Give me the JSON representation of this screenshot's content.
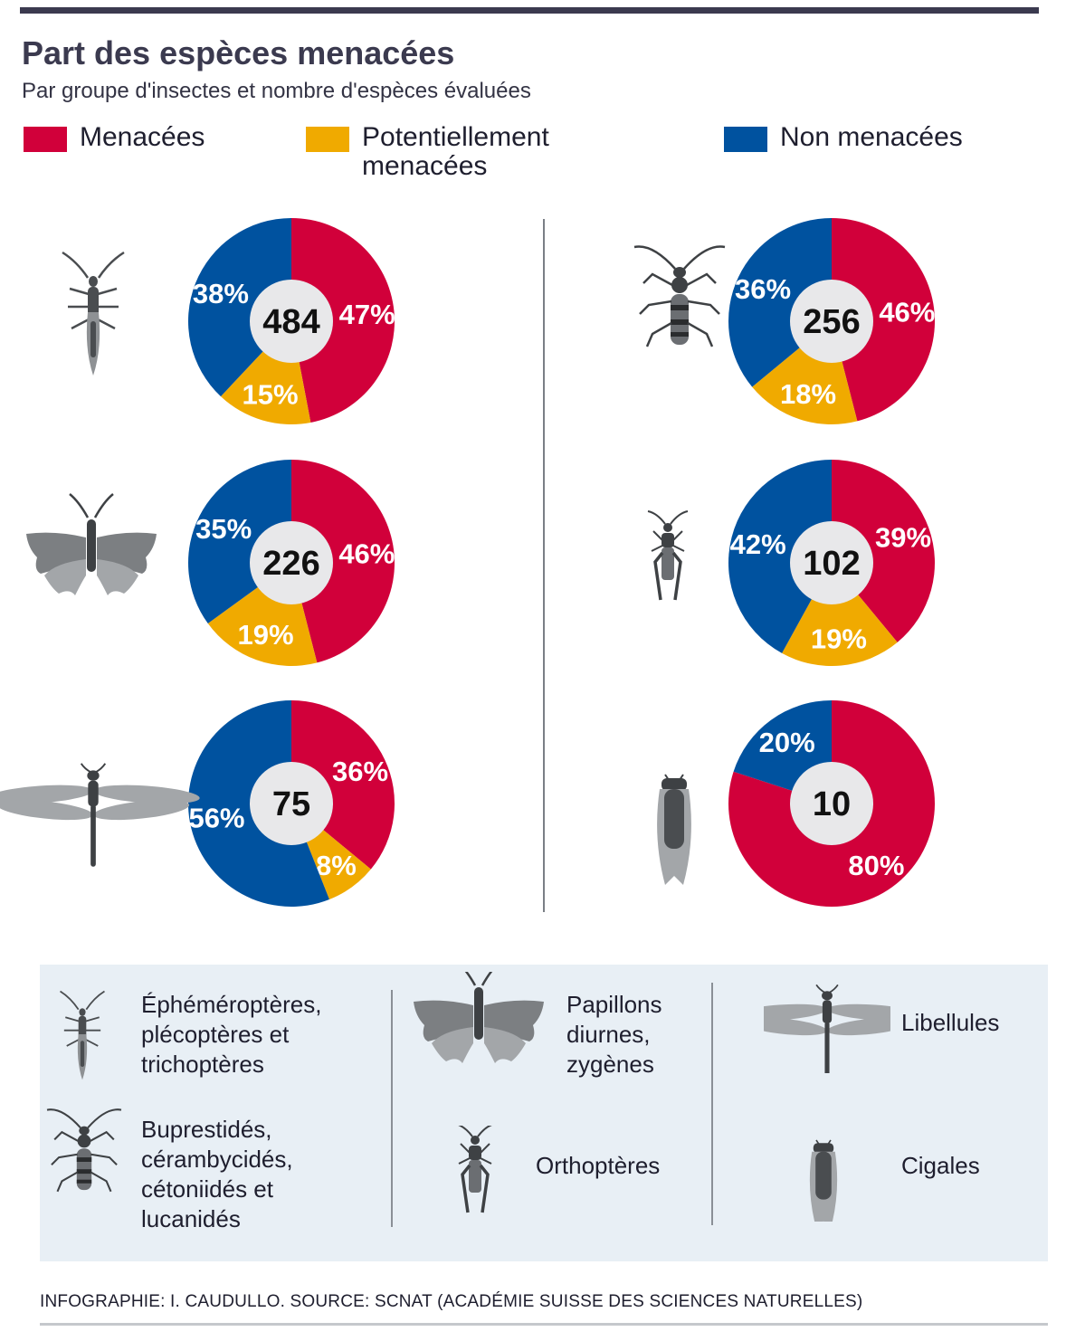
{
  "title": "Part des espèces menacées",
  "subtitle": "Par groupe d'insectes et nombre d'espèces évaluées",
  "legend": [
    {
      "label": "Menacées",
      "color": "#d1003a"
    },
    {
      "label": "Potentiellement menacées",
      "color": "#f0aa00"
    },
    {
      "label": "Non menacées",
      "color": "#00529f"
    }
  ],
  "chart_data": [
    {
      "type": "pie",
      "icon": "mayfly-icon",
      "total": "484",
      "slices": [
        {
          "name": "Menacées",
          "value": 47,
          "label": "47%"
        },
        {
          "name": "Potentiellement menacées",
          "value": 15,
          "label": "15%"
        },
        {
          "name": "Non menacées",
          "value": 38,
          "label": "38%"
        }
      ]
    },
    {
      "type": "pie",
      "icon": "longhorn-beetle-icon",
      "total": "256",
      "slices": [
        {
          "name": "Menacées",
          "value": 46,
          "label": "46%"
        },
        {
          "name": "Potentiellement menacées",
          "value": 18,
          "label": "18%"
        },
        {
          "name": "Non menacées",
          "value": 36,
          "label": "36%"
        }
      ]
    },
    {
      "type": "pie",
      "icon": "butterfly-icon",
      "total": "226",
      "slices": [
        {
          "name": "Menacées",
          "value": 46,
          "label": "46%"
        },
        {
          "name": "Potentiellement menacées",
          "value": 19,
          "label": "19%"
        },
        {
          "name": "Non menacées",
          "value": 35,
          "label": "35%"
        }
      ]
    },
    {
      "type": "pie",
      "icon": "grasshopper-icon",
      "total": "102",
      "slices": [
        {
          "name": "Menacées",
          "value": 39,
          "label": "39%"
        },
        {
          "name": "Potentiellement menacées",
          "value": 19,
          "label": "19%"
        },
        {
          "name": "Non menacées",
          "value": 42,
          "label": "42%"
        }
      ]
    },
    {
      "type": "pie",
      "icon": "dragonfly-icon",
      "total": "75",
      "slices": [
        {
          "name": "Menacées",
          "value": 36,
          "label": "36%"
        },
        {
          "name": "Potentiellement menacées",
          "value": 8,
          "label": "8%"
        },
        {
          "name": "Non menacées",
          "value": 56,
          "label": "56%"
        }
      ]
    },
    {
      "type": "pie",
      "icon": "cicada-icon",
      "total": "10",
      "slices": [
        {
          "name": "Menacées",
          "value": 80,
          "label": "80%"
        },
        {
          "name": "Potentiellement menacées",
          "value": 0,
          "label": ""
        },
        {
          "name": "Non menacées",
          "value": 20,
          "label": "20%"
        }
      ]
    }
  ],
  "key": {
    "mayfly": "Éphéméroptères, plécoptères et trichoptères",
    "butterfly": "Papillons diurnes, zygènes",
    "dragonfly": "Libellules",
    "beetle": "Buprestidés, cérambycidés, cétoniidés et lucanidés",
    "grasshopper": "Orthoptères",
    "cicada": "Cigales"
  },
  "footer": "INFOGRAPHIE: I. CAUDULLO. SOURCE: SCNAT (ACADÉMIE SUISSE DES SCIENCES NATURELLES)"
}
